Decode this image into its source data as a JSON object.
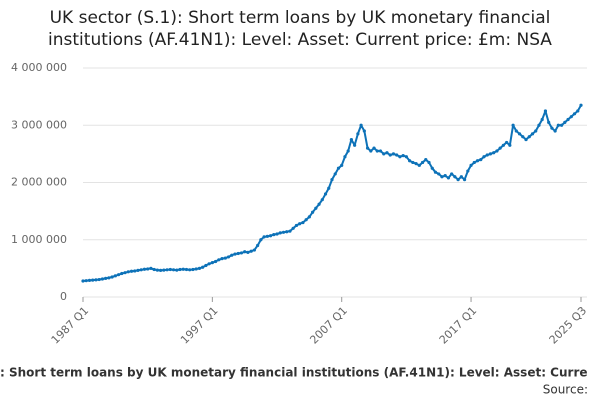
{
  "chart_data": {
    "type": "line",
    "title": [
      "UK sector (S.1): Short term loans by UK monetary financial",
      "institutions (AF.41N1): Level: Asset: Current price: £m: NSA"
    ],
    "caption": ": Short term loans by UK monetary financial institutions (AF.41N1): Level: Asset: Curre",
    "source": "Source:",
    "categories": [
      "1987 Q1",
      null,
      null,
      null,
      null,
      null,
      null,
      null,
      null,
      null,
      null,
      null,
      null,
      null,
      null,
      null,
      null,
      null,
      null,
      null,
      null,
      null,
      null,
      null,
      null,
      null,
      null,
      null,
      null,
      null,
      null,
      null,
      null,
      null,
      null,
      null,
      null,
      null,
      null,
      null,
      "1997 Q1",
      null,
      null,
      null,
      null,
      null,
      null,
      null,
      null,
      null,
      null,
      null,
      null,
      null,
      null,
      null,
      null,
      null,
      null,
      null,
      null,
      null,
      null,
      null,
      null,
      null,
      null,
      null,
      null,
      null,
      null,
      null,
      null,
      null,
      null,
      null,
      null,
      null,
      null,
      null,
      "2007 Q1",
      null,
      null,
      null,
      null,
      null,
      null,
      null,
      null,
      null,
      null,
      null,
      null,
      null,
      null,
      null,
      null,
      null,
      null,
      null,
      null,
      null,
      null,
      null,
      null,
      null,
      null,
      null,
      null,
      null,
      null,
      null,
      null,
      null,
      null,
      null,
      null,
      null,
      null,
      null,
      "2017 Q1",
      null,
      null,
      null,
      null,
      null,
      null,
      null,
      null,
      null,
      null,
      null,
      null,
      null,
      null,
      null,
      null,
      null,
      null,
      null,
      null,
      null,
      null,
      null,
      null,
      null,
      null,
      null,
      null,
      null,
      null,
      null,
      null,
      null,
      "2025 Q3"
    ],
    "series": [
      {
        "name": "Short term loans",
        "color": "#0d72b8",
        "values": [
          280000,
          285000,
          290000,
          295000,
          300000,
          305000,
          315000,
          325000,
          335000,
          350000,
          370000,
          390000,
          410000,
          425000,
          440000,
          450000,
          455000,
          465000,
          475000,
          485000,
          490000,
          500000,
          480000,
          470000,
          465000,
          470000,
          475000,
          480000,
          475000,
          470000,
          480000,
          485000,
          480000,
          475000,
          480000,
          490000,
          500000,
          520000,
          550000,
          580000,
          600000,
          620000,
          650000,
          670000,
          680000,
          700000,
          730000,
          750000,
          760000,
          770000,
          790000,
          780000,
          800000,
          820000,
          900000,
          1000000,
          1050000,
          1060000,
          1070000,
          1090000,
          1100000,
          1120000,
          1130000,
          1140000,
          1150000,
          1200000,
          1250000,
          1280000,
          1300000,
          1350000,
          1400000,
          1480000,
          1550000,
          1620000,
          1700000,
          1800000,
          1900000,
          2050000,
          2150000,
          2250000,
          2300000,
          2450000,
          2550000,
          2750000,
          2650000,
          2850000,
          3000000,
          2900000,
          2600000,
          2550000,
          2600000,
          2550000,
          2550000,
          2500000,
          2520000,
          2480000,
          2500000,
          2480000,
          2450000,
          2470000,
          2450000,
          2380000,
          2350000,
          2330000,
          2300000,
          2350000,
          2400000,
          2350000,
          2250000,
          2180000,
          2150000,
          2100000,
          2120000,
          2080000,
          2150000,
          2100000,
          2050000,
          2100000,
          2050000,
          2200000,
          2300000,
          2350000,
          2380000,
          2400000,
          2450000,
          2480000,
          2500000,
          2520000,
          2550000,
          2600000,
          2650000,
          2700000,
          2650000,
          3000000,
          2900000,
          2850000,
          2800000,
          2750000,
          2800000,
          2850000,
          2900000,
          3000000,
          3100000,
          3250000,
          3050000,
          2950000,
          2900000,
          3000000,
          3000000,
          3050000,
          3100000,
          3150000,
          3200000,
          3250000,
          3350000
        ]
      }
    ],
    "ylim": [
      0,
      4000000
    ],
    "yticks": [
      0,
      {
        "value": 1000000,
        "label": "1 000 000"
      },
      {
        "value": 2000000,
        "label": "2 000 000"
      },
      {
        "value": 3000000,
        "label": "3 000 000"
      },
      {
        "value": 4000000,
        "label": "4 000 000"
      }
    ],
    "grid": true,
    "markers": true
  }
}
